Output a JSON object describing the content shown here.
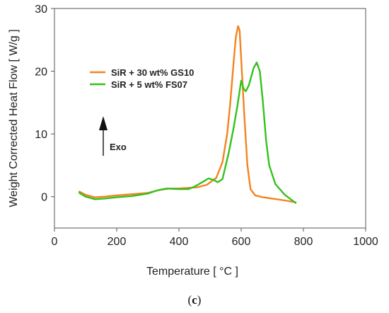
{
  "chart_data": {
    "type": "line",
    "xlabel": "Temperature [ °C ]",
    "ylabel": "Weight Corrected Heat Flow [ W/g ]",
    "xlim": [
      0,
      1000
    ],
    "ylim": [
      -5,
      30
    ],
    "xticks": [
      "0",
      "200",
      "400",
      "600",
      "800",
      "1000"
    ],
    "yticks": [
      "0",
      "10",
      "20",
      "30"
    ],
    "grid": false,
    "legend": "upper-left-center",
    "annotation": "Exo",
    "series": [
      {
        "name": "SiR + 30 wt% GS10",
        "color": "#f58220",
        "points": [
          [
            80,
            0.8
          ],
          [
            100,
            0.3
          ],
          [
            130,
            -0.1
          ],
          [
            160,
            0.0
          ],
          [
            200,
            0.2
          ],
          [
            250,
            0.4
          ],
          [
            300,
            0.6
          ],
          [
            340,
            1.1
          ],
          [
            370,
            1.3
          ],
          [
            400,
            1.3
          ],
          [
            430,
            1.4
          ],
          [
            460,
            1.5
          ],
          [
            490,
            1.9
          ],
          [
            520,
            3.0
          ],
          [
            540,
            5.5
          ],
          [
            555,
            10.0
          ],
          [
            565,
            15.0
          ],
          [
            575,
            21.0
          ],
          [
            583,
            25.5
          ],
          [
            590,
            27.2
          ],
          [
            595,
            26.5
          ],
          [
            600,
            22.0
          ],
          [
            610,
            13.0
          ],
          [
            620,
            5.0
          ],
          [
            630,
            1.2
          ],
          [
            645,
            0.2
          ],
          [
            670,
            -0.1
          ],
          [
            700,
            -0.3
          ],
          [
            740,
            -0.6
          ],
          [
            775,
            -0.9
          ]
        ]
      },
      {
        "name": "SiR + 5 wt% FS07",
        "color": "#33c21c",
        "points": [
          [
            80,
            0.6
          ],
          [
            100,
            0.0
          ],
          [
            130,
            -0.4
          ],
          [
            160,
            -0.3
          ],
          [
            200,
            -0.1
          ],
          [
            250,
            0.1
          ],
          [
            300,
            0.5
          ],
          [
            330,
            1.0
          ],
          [
            360,
            1.3
          ],
          [
            400,
            1.2
          ],
          [
            430,
            1.2
          ],
          [
            450,
            1.6
          ],
          [
            475,
            2.3
          ],
          [
            495,
            2.9
          ],
          [
            510,
            2.7
          ],
          [
            525,
            2.3
          ],
          [
            540,
            2.8
          ],
          [
            560,
            7.0
          ],
          [
            575,
            10.8
          ],
          [
            588,
            14.5
          ],
          [
            600,
            18.5
          ],
          [
            608,
            17.2
          ],
          [
            615,
            16.8
          ],
          [
            625,
            17.8
          ],
          [
            640,
            20.5
          ],
          [
            650,
            21.4
          ],
          [
            660,
            20.0
          ],
          [
            670,
            15.0
          ],
          [
            680,
            9.0
          ],
          [
            690,
            5.0
          ],
          [
            710,
            2.0
          ],
          [
            740,
            0.3
          ],
          [
            775,
            -1.0
          ]
        ]
      }
    ]
  },
  "caption": {
    "open": "(",
    "letter": "c",
    "close": ")"
  }
}
